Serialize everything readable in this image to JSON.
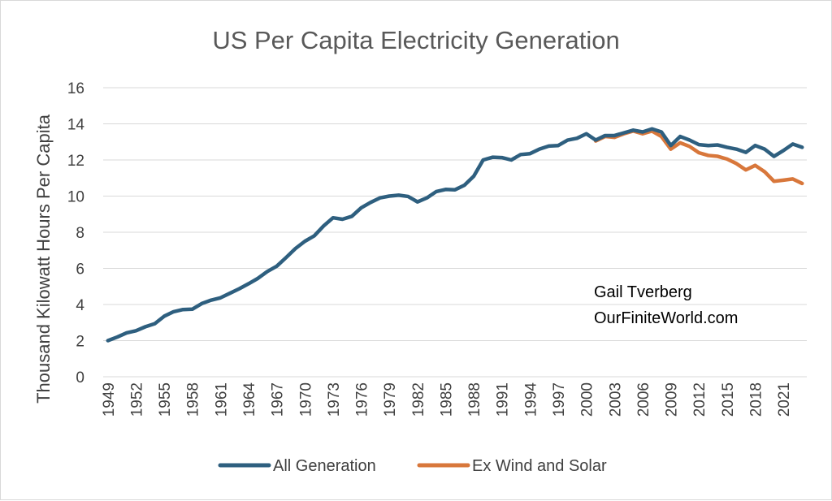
{
  "colors": {
    "all_generation": "#2e5f7f",
    "ex_wind_solar": "#d8773b",
    "grid": "#d9d9d9",
    "text": "#404040"
  },
  "annotation": {
    "line1": "Gail Tverberg",
    "line2": "OurFiniteWorld.com"
  },
  "chart_data": {
    "type": "line",
    "title": "US Per Capita Electricity Generation",
    "xlabel": "",
    "ylabel": "Thousand Kilowatt Hours Per Capita",
    "ylim": [
      0,
      16
    ],
    "yticks": [
      0,
      2,
      4,
      6,
      8,
      10,
      12,
      14,
      16
    ],
    "xticks": [
      "1949",
      "1952",
      "1955",
      "1958",
      "1961",
      "1964",
      "1967",
      "1970",
      "1973",
      "1976",
      "1979",
      "1982",
      "1985",
      "1988",
      "1991",
      "1994",
      "1997",
      "2000",
      "2003",
      "2006",
      "2009",
      "2012",
      "2015",
      "2018",
      "2021"
    ],
    "grid": true,
    "legend_position": "bottom",
    "x": [
      1949,
      1950,
      1951,
      1952,
      1953,
      1954,
      1955,
      1956,
      1957,
      1958,
      1959,
      1960,
      1961,
      1962,
      1963,
      1964,
      1965,
      1966,
      1967,
      1968,
      1969,
      1970,
      1971,
      1972,
      1973,
      1974,
      1975,
      1976,
      1977,
      1978,
      1979,
      1980,
      1981,
      1982,
      1983,
      1984,
      1985,
      1986,
      1987,
      1988,
      1989,
      1990,
      1991,
      1992,
      1993,
      1994,
      1995,
      1996,
      1997,
      1998,
      1999,
      2000,
      2001,
      2002,
      2003,
      2004,
      2005,
      2006,
      2007,
      2008,
      2009,
      2010,
      2011,
      2012,
      2013,
      2014,
      2015,
      2016,
      2017,
      2018,
      2019,
      2020,
      2021,
      2022,
      2023
    ],
    "series": [
      {
        "name": "All Generation",
        "color": "#2e5f7f",
        "values": [
          2.0,
          2.2,
          2.43,
          2.55,
          2.77,
          2.94,
          3.35,
          3.6,
          3.72,
          3.74,
          4.05,
          4.24,
          4.37,
          4.62,
          4.87,
          5.15,
          5.45,
          5.83,
          6.12,
          6.6,
          7.1,
          7.5,
          7.8,
          8.35,
          8.8,
          8.72,
          8.88,
          9.35,
          9.65,
          9.9,
          10.0,
          10.05,
          9.98,
          9.68,
          9.9,
          10.25,
          10.37,
          10.35,
          10.6,
          11.1,
          12.0,
          12.15,
          12.13,
          12.0,
          12.3,
          12.35,
          12.6,
          12.77,
          12.8,
          13.1,
          13.2,
          13.45,
          13.1,
          13.35,
          13.35,
          13.5,
          13.65,
          13.55,
          13.72,
          13.55,
          12.8,
          13.3,
          13.1,
          12.85,
          12.8,
          12.83,
          12.7,
          12.6,
          12.42,
          12.8,
          12.6,
          12.2,
          12.52,
          12.88,
          12.7
        ]
      },
      {
        "name": "Ex Wind and Solar",
        "color": "#d8773b",
        "values": [
          null,
          null,
          null,
          null,
          null,
          null,
          null,
          null,
          null,
          null,
          null,
          null,
          null,
          null,
          null,
          null,
          null,
          null,
          null,
          null,
          null,
          null,
          null,
          null,
          null,
          null,
          null,
          null,
          null,
          null,
          null,
          null,
          null,
          null,
          null,
          null,
          null,
          null,
          null,
          null,
          null,
          null,
          null,
          null,
          null,
          null,
          null,
          null,
          null,
          null,
          null,
          null,
          13.05,
          13.3,
          13.25,
          13.45,
          13.6,
          13.45,
          13.6,
          13.3,
          12.6,
          12.95,
          12.75,
          12.4,
          12.25,
          12.2,
          12.05,
          11.8,
          11.45,
          11.7,
          11.35,
          10.82,
          10.88,
          10.95,
          10.7
        ]
      }
    ]
  }
}
